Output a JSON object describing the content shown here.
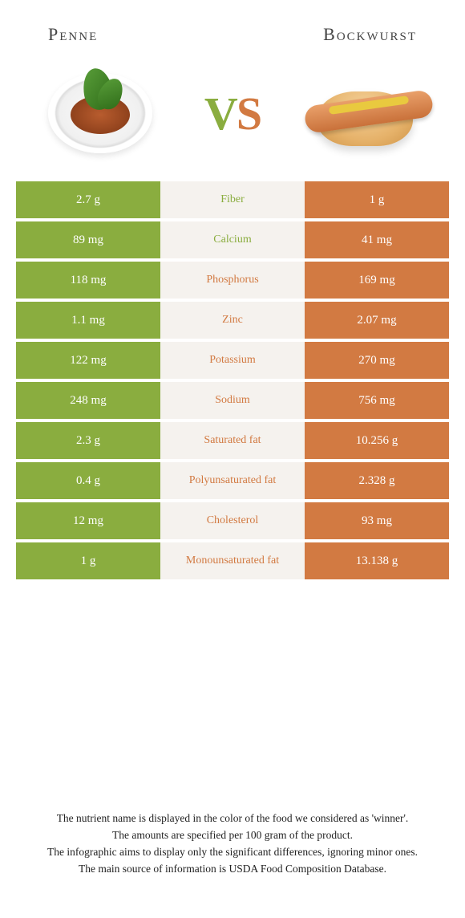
{
  "colors": {
    "green": "#8aad3f",
    "orange": "#d27a42",
    "mid_bg": "#f5f2ee",
    "page_bg": "#ffffff"
  },
  "header": {
    "left_title": "Penne",
    "right_title": "Bockwurst",
    "vs_v": "V",
    "vs_s": "S"
  },
  "rows": [
    {
      "nutrient": "Fiber",
      "left": "2.7 g",
      "right": "1 g",
      "winner": "left"
    },
    {
      "nutrient": "Calcium",
      "left": "89 mg",
      "right": "41 mg",
      "winner": "left"
    },
    {
      "nutrient": "Phosphorus",
      "left": "118 mg",
      "right": "169 mg",
      "winner": "right"
    },
    {
      "nutrient": "Zinc",
      "left": "1.1 mg",
      "right": "2.07 mg",
      "winner": "right"
    },
    {
      "nutrient": "Potassium",
      "left": "122 mg",
      "right": "270 mg",
      "winner": "right"
    },
    {
      "nutrient": "Sodium",
      "left": "248 mg",
      "right": "756 mg",
      "winner": "right"
    },
    {
      "nutrient": "Saturated fat",
      "left": "2.3 g",
      "right": "10.256 g",
      "winner": "right"
    },
    {
      "nutrient": "Polyunsaturated fat",
      "left": "0.4 g",
      "right": "2.328 g",
      "winner": "right"
    },
    {
      "nutrient": "Cholesterol",
      "left": "12 mg",
      "right": "93 mg",
      "winner": "right"
    },
    {
      "nutrient": "Monounsaturated fat",
      "left": "1 g",
      "right": "13.138 g",
      "winner": "right"
    }
  ],
  "footer": {
    "line1": "The nutrient name is displayed in the color of the food we considered as 'winner'.",
    "line2": "The amounts are specified per 100 gram of the product.",
    "line3": "The infographic aims to display only the significant differences, ignoring minor ones.",
    "line4": "The main source of information is USDA Food Composition Database."
  }
}
